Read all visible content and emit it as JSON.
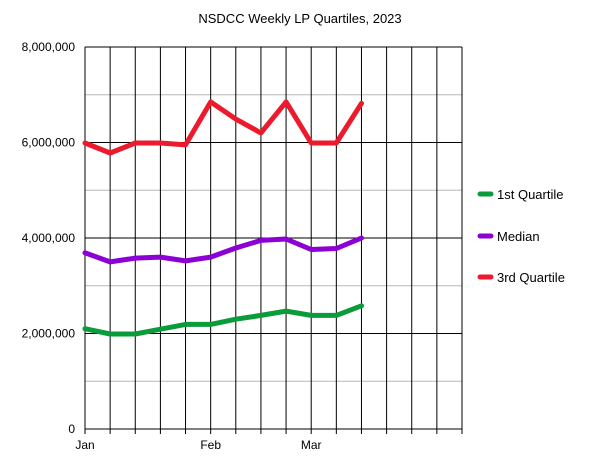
{
  "chart_data": {
    "type": "line",
    "title": "NSDCC Weekly LP Quartiles, 2023",
    "xlabel": "",
    "ylabel": "",
    "ylim": [
      0,
      8000000
    ],
    "yticks": [
      0,
      2000000,
      4000000,
      6000000,
      8000000
    ],
    "ytick_labels": [
      "0",
      "2,000,000",
      "4,000,000",
      "6,000,000",
      "8,000,000"
    ],
    "x_count": 16,
    "x_labels": [
      {
        "index": 0,
        "label": "Jan"
      },
      {
        "index": 5,
        "label": "Feb"
      },
      {
        "index": 9,
        "label": "Mar"
      }
    ],
    "grid": true,
    "legend_position": "right",
    "series": [
      {
        "name": "1st Quartile",
        "color": "#0a9c3a",
        "values": [
          2100000,
          1990000,
          1990000,
          2090000,
          2190000,
          2190000,
          2300000,
          2380000,
          2470000,
          2380000,
          2380000,
          2580000
        ]
      },
      {
        "name": "Median",
        "color": "#8c00d6",
        "values": [
          3690000,
          3500000,
          3580000,
          3600000,
          3520000,
          3600000,
          3790000,
          3950000,
          3980000,
          3760000,
          3780000,
          4000000
        ]
      },
      {
        "name": "3rd Quartile",
        "color": "#ec1a2c",
        "values": [
          5990000,
          5780000,
          5990000,
          5990000,
          5950000,
          6850000,
          6490000,
          6200000,
          6850000,
          5990000,
          5990000,
          6820000
        ]
      }
    ]
  }
}
